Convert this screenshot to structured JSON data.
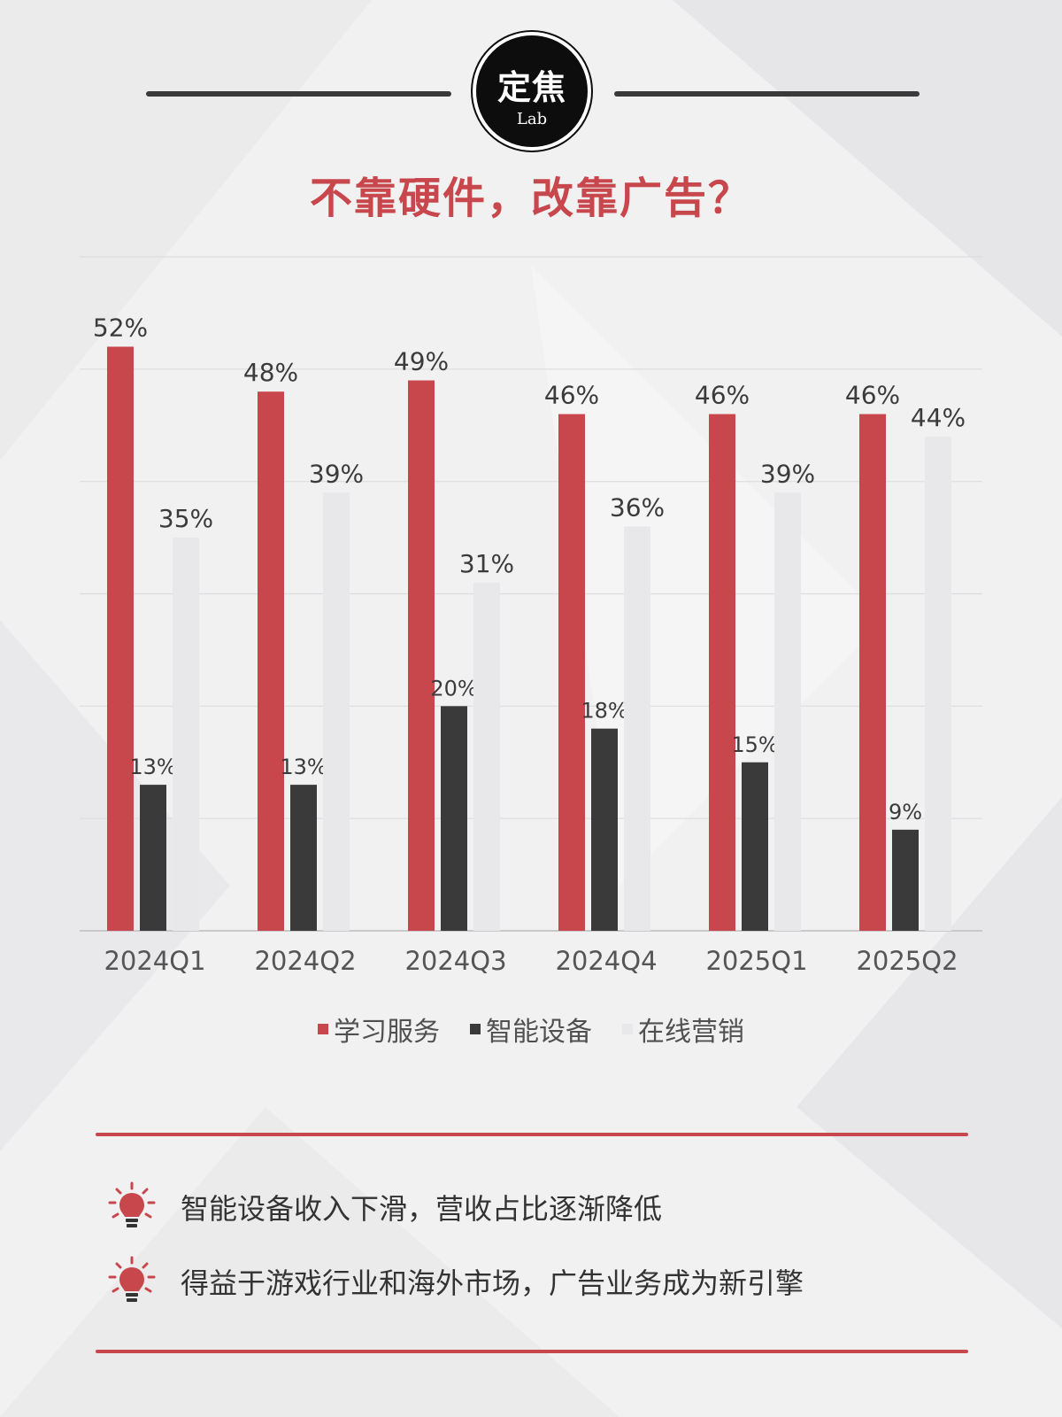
{
  "logo": {
    "main": "定焦",
    "sub": "Lab"
  },
  "title": "不靠硬件，改靠广告？",
  "colors": {
    "learning": "#c8474c",
    "devices": "#3a3a3a",
    "marketing": "#e8e8ea",
    "accent": "#c8474c"
  },
  "chart_data": {
    "type": "bar",
    "categories": [
      "2024Q1",
      "2024Q2",
      "2024Q3",
      "2024Q4",
      "2025Q1",
      "2025Q2"
    ],
    "series": [
      {
        "name": "学习服务",
        "values": [
          52,
          48,
          49,
          46,
          46,
          46
        ],
        "labels": [
          "52%",
          "48%",
          "49%",
          "46%",
          "46%",
          "46%"
        ]
      },
      {
        "name": "智能设备",
        "values": [
          13,
          13,
          20,
          18,
          15,
          9
        ],
        "labels": [
          "13%",
          "13%",
          "20%",
          "18%",
          "15%",
          "9%"
        ]
      },
      {
        "name": "在线营销",
        "values": [
          35,
          39,
          31,
          36,
          39,
          44
        ],
        "labels": [
          "35%",
          "39%",
          "31%",
          "36%",
          "39%",
          "44%"
        ]
      }
    ],
    "ylim": [
      0,
      60
    ],
    "grid": true,
    "legend_position": "bottom"
  },
  "notes": [
    {
      "icon": "lightbulb-icon",
      "text": "智能设备收入下滑，营收占比逐渐降低"
    },
    {
      "icon": "lightbulb-icon",
      "text": "得益于游戏行业和海外市场，广告业务成为新引擎"
    }
  ]
}
